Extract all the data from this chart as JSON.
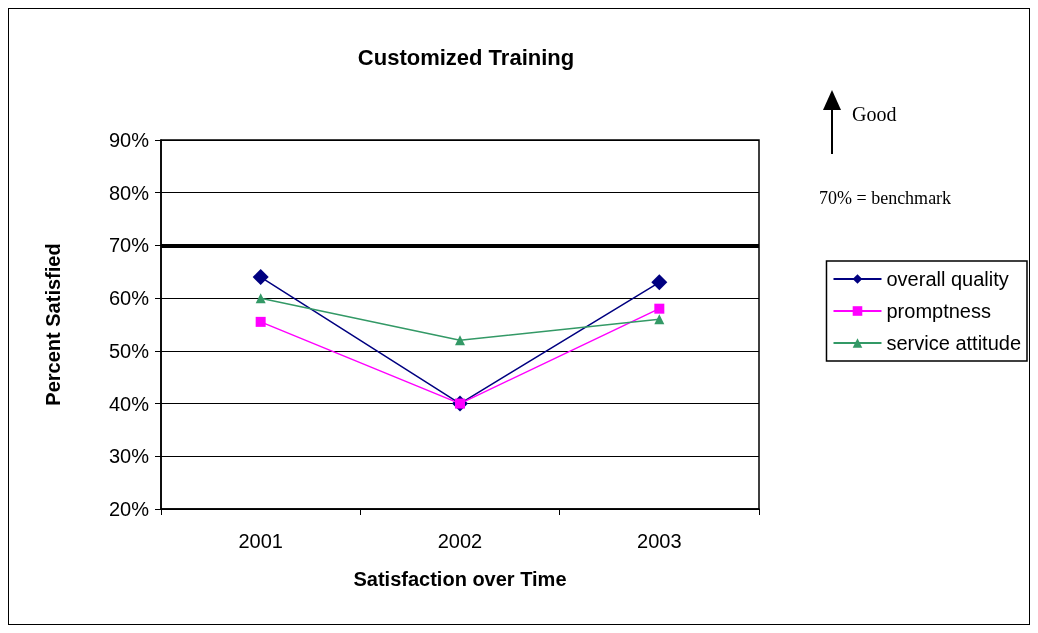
{
  "chart_data": {
    "type": "line",
    "title": "Customized Training",
    "xlabel": "Satisfaction over Time",
    "ylabel": "Percent Satisfied",
    "categories": [
      "2001",
      "2002",
      "2003"
    ],
    "series": [
      {
        "name": "overall quality",
        "color": "#000080",
        "marker": "diamond",
        "values": [
          64,
          40,
          63
        ]
      },
      {
        "name": "promptness",
        "color": "#ff00ff",
        "marker": "square",
        "values": [
          55.5,
          40,
          58
        ]
      },
      {
        "name": "service attitude",
        "color": "#339966",
        "marker": "triangle",
        "values": [
          60,
          52,
          56
        ]
      }
    ],
    "ylim": [
      20,
      90
    ],
    "yticks": [
      {
        "value": 20,
        "label": "20%"
      },
      {
        "value": 30,
        "label": "30%"
      },
      {
        "value": 40,
        "label": "40%"
      },
      {
        "value": 50,
        "label": "50%"
      },
      {
        "value": 60,
        "label": "60%"
      },
      {
        "value": 70,
        "label": "70%"
      },
      {
        "value": 80,
        "label": "80%"
      },
      {
        "value": 90,
        "label": "90%"
      }
    ],
    "ref_lines": [
      {
        "axis": "y",
        "value": 70,
        "color": "#000000"
      }
    ],
    "annotations": [
      "Good",
      "70% = benchmark"
    ],
    "grid": "y",
    "legend": "right",
    "line_style": "solid"
  }
}
